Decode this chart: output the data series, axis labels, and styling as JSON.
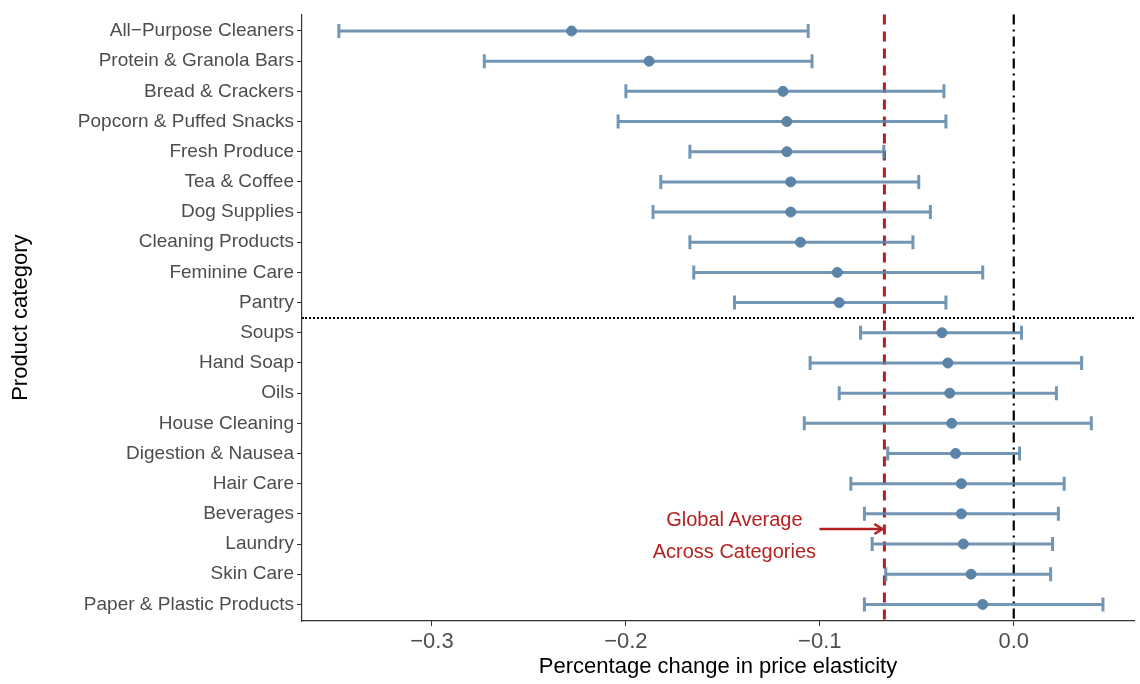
{
  "chart_data": {
    "type": "scatter",
    "orientation": "horizontal",
    "xlabel": "Percentage change in price elasticity",
    "ylabel": "Product category",
    "categories": [
      "All−Purpose Cleaners",
      "Protein & Granola Bars",
      "Bread & Crackers",
      "Popcorn & Puffed Snacks",
      "Fresh Produce",
      "Tea & Coffee",
      "Dog Supplies",
      "Cleaning Products",
      "Feminine Care",
      "Pantry",
      "Soups",
      "Hand Soap",
      "Oils",
      "House Cleaning",
      "Digestion & Nausea",
      "Hair Care",
      "Beverages",
      "Laundry",
      "Skin Care",
      "Paper & Plastic Products"
    ],
    "values": [
      -0.228,
      -0.188,
      -0.119,
      -0.117,
      -0.117,
      -0.115,
      -0.115,
      -0.11,
      -0.091,
      -0.09,
      -0.037,
      -0.034,
      -0.033,
      -0.032,
      -0.03,
      -0.027,
      -0.027,
      -0.026,
      -0.022,
      -0.016
    ],
    "errors": [
      [
        -0.348,
        -0.106
      ],
      [
        -0.273,
        -0.104
      ],
      [
        -0.2,
        -0.036
      ],
      [
        -0.204,
        -0.035
      ],
      [
        -0.167,
        -0.067
      ],
      [
        -0.182,
        -0.049
      ],
      [
        -0.186,
        -0.043
      ],
      [
        -0.167,
        -0.052
      ],
      [
        -0.165,
        -0.016
      ],
      [
        -0.144,
        -0.035
      ],
      [
        -0.079,
        0.004
      ],
      [
        -0.105,
        0.035
      ],
      [
        -0.09,
        0.022
      ],
      [
        -0.108,
        0.04
      ],
      [
        -0.065,
        0.003
      ],
      [
        -0.084,
        0.026
      ],
      [
        -0.077,
        0.023
      ],
      [
        -0.073,
        0.02
      ],
      [
        -0.066,
        0.019
      ],
      [
        -0.077,
        0.046
      ]
    ],
    "color": "#5b84a8",
    "marker": "circle",
    "xlim": [
      -0.367,
      0.062
    ],
    "xticks": [
      {
        "value": -0.3,
        "label": "−0.3"
      },
      {
        "value": -0.2,
        "label": "−0.2"
      },
      {
        "value": -0.1,
        "label": "−0.1"
      },
      {
        "value": 0,
        "label": "0.0"
      }
    ],
    "ref_lines": [
      {
        "axis": "x",
        "value": -0.0667,
        "label": "Global Average Across Categories",
        "color": "#b22222",
        "line_style": "dashed"
      },
      {
        "axis": "x",
        "value": 0,
        "color": "#000000",
        "line_style": "dashdot"
      }
    ],
    "grid": false,
    "legend": false
  }
}
